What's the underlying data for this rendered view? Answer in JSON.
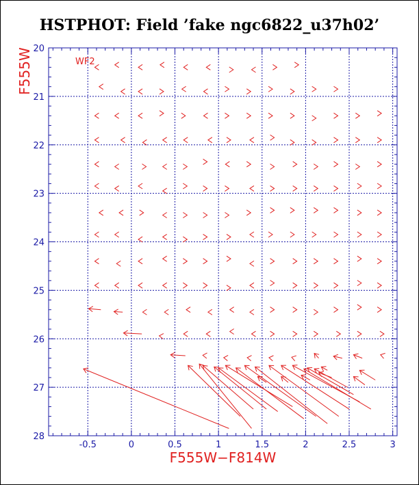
{
  "chart_data": {
    "type": "vector",
    "title": "HSTPHOT: Field ’fake ngc6822_u37h02’",
    "xlabel": "F555W−F814W",
    "ylabel": "F555W",
    "annotation": "WF2",
    "xlim": [
      -0.95,
      3.05
    ],
    "ylim": [
      28,
      20
    ],
    "x_ticks": [
      -0.5,
      0,
      0.5,
      1,
      1.5,
      2,
      2.5,
      3
    ],
    "x_tick_labels": [
      "-0.5",
      "0",
      "0.5",
      "1",
      "1.5",
      "2",
      "2.5",
      "3"
    ],
    "y_ticks": [
      20,
      21,
      22,
      23,
      24,
      25,
      26,
      27,
      28
    ],
    "y_tick_labels": [
      "20",
      "21",
      "22",
      "23",
      "24",
      "25",
      "26",
      "27",
      "28"
    ],
    "grid_x": [
      -0.5,
      0,
      0.5,
      1,
      1.5,
      2,
      2.5,
      3
    ],
    "grid_y": [
      21,
      22,
      23,
      24,
      25,
      26,
      27
    ],
    "colors": {
      "axes": "#1a1aa6",
      "vectors": "#e0201f",
      "title": "#000000"
    },
    "vectors": [
      {
        "x0": -0.4,
        "y0": 20.4,
        "x1": -0.42,
        "y1": 20.4
      },
      {
        "x0": -0.17,
        "y0": 20.35,
        "x1": -0.19,
        "y1": 20.35
      },
      {
        "x0": 0.1,
        "y0": 20.4,
        "x1": 0.08,
        "y1": 20.4
      },
      {
        "x0": 0.35,
        "y0": 20.35,
        "x1": 0.33,
        "y1": 20.35
      },
      {
        "x0": 0.62,
        "y0": 20.4,
        "x1": 0.6,
        "y1": 20.4
      },
      {
        "x0": 0.88,
        "y0": 20.4,
        "x1": 0.86,
        "y1": 20.4
      },
      {
        "x0": 1.15,
        "y0": 20.45,
        "x1": 1.17,
        "y1": 20.45
      },
      {
        "x0": 1.4,
        "y0": 20.45,
        "x1": 1.38,
        "y1": 20.45
      },
      {
        "x0": 1.65,
        "y0": 20.4,
        "x1": 1.67,
        "y1": 20.4
      },
      {
        "x0": 1.9,
        "y0": 20.35,
        "x1": 1.92,
        "y1": 20.35
      },
      {
        "x0": -0.35,
        "y0": 20.8,
        "x1": -0.37,
        "y1": 20.8
      },
      {
        "x0": -0.1,
        "y0": 20.9,
        "x1": -0.12,
        "y1": 20.9
      },
      {
        "x0": 0.1,
        "y0": 20.9,
        "x1": 0.08,
        "y1": 20.9
      },
      {
        "x0": 0.35,
        "y0": 20.9,
        "x1": 0.37,
        "y1": 20.9
      },
      {
        "x0": 0.6,
        "y0": 20.85,
        "x1": 0.58,
        "y1": 20.85
      },
      {
        "x0": 0.85,
        "y0": 20.9,
        "x1": 0.83,
        "y1": 20.9
      },
      {
        "x0": 1.1,
        "y0": 20.85,
        "x1": 1.12,
        "y1": 20.85
      },
      {
        "x0": 1.35,
        "y0": 20.9,
        "x1": 1.37,
        "y1": 20.9
      },
      {
        "x0": 1.6,
        "y0": 20.85,
        "x1": 1.62,
        "y1": 20.85
      },
      {
        "x0": 1.85,
        "y0": 20.9,
        "x1": 1.87,
        "y1": 20.9
      },
      {
        "x0": 2.1,
        "y0": 20.85,
        "x1": 2.12,
        "y1": 20.85
      },
      {
        "x0": 2.35,
        "y0": 20.85,
        "x1": 2.37,
        "y1": 20.85
      },
      {
        "x0": -0.4,
        "y0": 21.4,
        "x1": -0.42,
        "y1": 21.4
      },
      {
        "x0": -0.17,
        "y0": 21.4,
        "x1": -0.19,
        "y1": 21.4
      },
      {
        "x0": 0.1,
        "y0": 21.4,
        "x1": 0.08,
        "y1": 21.4
      },
      {
        "x0": 0.35,
        "y0": 21.35,
        "x1": 0.37,
        "y1": 21.35
      },
      {
        "x0": 0.6,
        "y0": 21.4,
        "x1": 0.62,
        "y1": 21.4
      },
      {
        "x0": 0.85,
        "y0": 21.4,
        "x1": 0.83,
        "y1": 21.4
      },
      {
        "x0": 1.1,
        "y0": 21.4,
        "x1": 1.12,
        "y1": 21.4
      },
      {
        "x0": 1.35,
        "y0": 21.4,
        "x1": 1.37,
        "y1": 21.4
      },
      {
        "x0": 1.6,
        "y0": 21.4,
        "x1": 1.62,
        "y1": 21.4
      },
      {
        "x0": 1.85,
        "y0": 21.4,
        "x1": 1.87,
        "y1": 21.4
      },
      {
        "x0": 2.1,
        "y0": 21.45,
        "x1": 2.12,
        "y1": 21.45
      },
      {
        "x0": 2.35,
        "y0": 21.4,
        "x1": 2.37,
        "y1": 21.4
      },
      {
        "x0": 2.6,
        "y0": 21.4,
        "x1": 2.62,
        "y1": 21.4
      },
      {
        "x0": 2.85,
        "y0": 21.35,
        "x1": 2.87,
        "y1": 21.35
      },
      {
        "x0": -0.4,
        "y0": 21.9,
        "x1": -0.42,
        "y1": 21.9
      },
      {
        "x0": -0.1,
        "y0": 21.9,
        "x1": -0.12,
        "y1": 21.9
      },
      {
        "x0": 0.15,
        "y0": 21.95,
        "x1": 0.13,
        "y1": 21.95
      },
      {
        "x0": 0.38,
        "y0": 21.9,
        "x1": 0.36,
        "y1": 21.9
      },
      {
        "x0": 0.62,
        "y0": 21.9,
        "x1": 0.6,
        "y1": 21.9
      },
      {
        "x0": 0.9,
        "y0": 21.9,
        "x1": 0.88,
        "y1": 21.9
      },
      {
        "x0": 1.12,
        "y0": 21.9,
        "x1": 1.14,
        "y1": 21.9
      },
      {
        "x0": 1.38,
        "y0": 21.9,
        "x1": 1.36,
        "y1": 21.9
      },
      {
        "x0": 1.62,
        "y0": 21.85,
        "x1": 1.64,
        "y1": 21.85
      },
      {
        "x0": 1.85,
        "y0": 21.95,
        "x1": 1.87,
        "y1": 21.95
      },
      {
        "x0": 2.1,
        "y0": 21.95,
        "x1": 2.12,
        "y1": 21.95
      },
      {
        "x0": 2.35,
        "y0": 21.9,
        "x1": 2.37,
        "y1": 21.9
      },
      {
        "x0": 2.6,
        "y0": 21.9,
        "x1": 2.62,
        "y1": 21.9
      },
      {
        "x0": 2.85,
        "y0": 21.9,
        "x1": 2.87,
        "y1": 21.9
      },
      {
        "x0": -0.4,
        "y0": 22.4,
        "x1": -0.42,
        "y1": 22.4
      },
      {
        "x0": -0.17,
        "y0": 22.45,
        "x1": -0.19,
        "y1": 22.45
      },
      {
        "x0": 0.15,
        "y0": 22.45,
        "x1": 0.17,
        "y1": 22.45
      },
      {
        "x0": 0.38,
        "y0": 22.45,
        "x1": 0.36,
        "y1": 22.45
      },
      {
        "x0": 0.62,
        "y0": 22.45,
        "x1": 0.64,
        "y1": 22.45
      },
      {
        "x0": 0.85,
        "y0": 22.35,
        "x1": 0.87,
        "y1": 22.35
      },
      {
        "x0": 1.1,
        "y0": 22.4,
        "x1": 1.08,
        "y1": 22.4
      },
      {
        "x0": 1.35,
        "y0": 22.4,
        "x1": 1.37,
        "y1": 22.4
      },
      {
        "x0": 1.62,
        "y0": 22.45,
        "x1": 1.64,
        "y1": 22.45
      },
      {
        "x0": 1.88,
        "y0": 22.4,
        "x1": 1.9,
        "y1": 22.4
      },
      {
        "x0": 2.12,
        "y0": 22.45,
        "x1": 2.14,
        "y1": 22.45
      },
      {
        "x0": 2.35,
        "y0": 22.4,
        "x1": 2.37,
        "y1": 22.4
      },
      {
        "x0": 2.6,
        "y0": 22.45,
        "x1": 2.62,
        "y1": 22.45
      },
      {
        "x0": 2.85,
        "y0": 22.4,
        "x1": 2.87,
        "y1": 22.4
      },
      {
        "x0": -0.4,
        "y0": 22.85,
        "x1": -0.42,
        "y1": 22.85
      },
      {
        "x0": -0.17,
        "y0": 22.9,
        "x1": -0.19,
        "y1": 22.9
      },
      {
        "x0": 0.1,
        "y0": 22.85,
        "x1": 0.08,
        "y1": 22.85
      },
      {
        "x0": 0.38,
        "y0": 22.95,
        "x1": 0.36,
        "y1": 22.95
      },
      {
        "x0": 0.62,
        "y0": 22.85,
        "x1": 0.64,
        "y1": 22.85
      },
      {
        "x0": 0.85,
        "y0": 22.9,
        "x1": 0.87,
        "y1": 22.9
      },
      {
        "x0": 1.1,
        "y0": 22.9,
        "x1": 1.12,
        "y1": 22.9
      },
      {
        "x0": 1.38,
        "y0": 22.9,
        "x1": 1.36,
        "y1": 22.9
      },
      {
        "x0": 1.62,
        "y0": 22.9,
        "x1": 1.64,
        "y1": 22.9
      },
      {
        "x0": 1.88,
        "y0": 22.9,
        "x1": 1.9,
        "y1": 22.9
      },
      {
        "x0": 2.12,
        "y0": 22.9,
        "x1": 2.14,
        "y1": 22.9
      },
      {
        "x0": 2.35,
        "y0": 22.9,
        "x1": 2.37,
        "y1": 22.9
      },
      {
        "x0": 2.62,
        "y0": 22.85,
        "x1": 2.64,
        "y1": 22.85
      },
      {
        "x0": 2.85,
        "y0": 22.85,
        "x1": 2.87,
        "y1": 22.85
      },
      {
        "x0": -0.35,
        "y0": 23.4,
        "x1": -0.37,
        "y1": 23.4
      },
      {
        "x0": -0.12,
        "y0": 23.4,
        "x1": -0.14,
        "y1": 23.4
      },
      {
        "x0": 0.12,
        "y0": 23.4,
        "x1": 0.14,
        "y1": 23.4
      },
      {
        "x0": 0.38,
        "y0": 23.45,
        "x1": 0.36,
        "y1": 23.45
      },
      {
        "x0": 0.62,
        "y0": 23.45,
        "x1": 0.64,
        "y1": 23.45
      },
      {
        "x0": 0.85,
        "y0": 23.45,
        "x1": 0.87,
        "y1": 23.45
      },
      {
        "x0": 1.1,
        "y0": 23.45,
        "x1": 1.12,
        "y1": 23.45
      },
      {
        "x0": 1.35,
        "y0": 23.4,
        "x1": 1.37,
        "y1": 23.4
      },
      {
        "x0": 1.62,
        "y0": 23.35,
        "x1": 1.64,
        "y1": 23.35
      },
      {
        "x0": 1.85,
        "y0": 23.35,
        "x1": 1.87,
        "y1": 23.35
      },
      {
        "x0": 2.12,
        "y0": 23.35,
        "x1": 2.14,
        "y1": 23.35
      },
      {
        "x0": 2.35,
        "y0": 23.35,
        "x1": 2.37,
        "y1": 23.35
      },
      {
        "x0": 2.62,
        "y0": 23.4,
        "x1": 2.64,
        "y1": 23.4
      },
      {
        "x0": 2.85,
        "y0": 23.4,
        "x1": 2.87,
        "y1": 23.4
      },
      {
        "x0": -0.4,
        "y0": 23.85,
        "x1": -0.42,
        "y1": 23.85
      },
      {
        "x0": -0.17,
        "y0": 23.85,
        "x1": -0.19,
        "y1": 23.85
      },
      {
        "x0": 0.1,
        "y0": 23.95,
        "x1": 0.08,
        "y1": 23.95
      },
      {
        "x0": 0.38,
        "y0": 23.9,
        "x1": 0.36,
        "y1": 23.9
      },
      {
        "x0": 0.62,
        "y0": 23.95,
        "x1": 0.64,
        "y1": 23.95
      },
      {
        "x0": 0.85,
        "y0": 23.9,
        "x1": 0.87,
        "y1": 23.9
      },
      {
        "x0": 1.12,
        "y0": 23.9,
        "x1": 1.14,
        "y1": 23.9
      },
      {
        "x0": 1.38,
        "y0": 23.85,
        "x1": 1.36,
        "y1": 23.85
      },
      {
        "x0": 1.6,
        "y0": 23.85,
        "x1": 1.62,
        "y1": 23.85
      },
      {
        "x0": 1.85,
        "y0": 23.85,
        "x1": 1.87,
        "y1": 23.85
      },
      {
        "x0": 2.1,
        "y0": 23.85,
        "x1": 2.12,
        "y1": 23.85
      },
      {
        "x0": 2.35,
        "y0": 23.85,
        "x1": 2.37,
        "y1": 23.85
      },
      {
        "x0": 2.62,
        "y0": 23.85,
        "x1": 2.64,
        "y1": 23.85
      },
      {
        "x0": 2.85,
        "y0": 23.85,
        "x1": 2.87,
        "y1": 23.85
      },
      {
        "x0": -0.4,
        "y0": 24.4,
        "x1": -0.42,
        "y1": 24.4
      },
      {
        "x0": -0.15,
        "y0": 24.45,
        "x1": -0.17,
        "y1": 24.45
      },
      {
        "x0": 0.1,
        "y0": 24.4,
        "x1": 0.08,
        "y1": 24.4
      },
      {
        "x0": 0.38,
        "y0": 24.35,
        "x1": 0.36,
        "y1": 24.35
      },
      {
        "x0": 0.62,
        "y0": 24.4,
        "x1": 0.64,
        "y1": 24.4
      },
      {
        "x0": 0.85,
        "y0": 24.4,
        "x1": 0.87,
        "y1": 24.4
      },
      {
        "x0": 1.12,
        "y0": 24.35,
        "x1": 1.14,
        "y1": 24.35
      },
      {
        "x0": 1.38,
        "y0": 24.45,
        "x1": 1.36,
        "y1": 24.45
      },
      {
        "x0": 1.62,
        "y0": 24.4,
        "x1": 1.64,
        "y1": 24.4
      },
      {
        "x0": 1.88,
        "y0": 24.4,
        "x1": 1.9,
        "y1": 24.4
      },
      {
        "x0": 2.12,
        "y0": 24.4,
        "x1": 2.14,
        "y1": 24.4
      },
      {
        "x0": 2.35,
        "y0": 24.4,
        "x1": 2.37,
        "y1": 24.4
      },
      {
        "x0": 2.62,
        "y0": 24.35,
        "x1": 2.64,
        "y1": 24.35
      },
      {
        "x0": 2.85,
        "y0": 24.4,
        "x1": 2.87,
        "y1": 24.4
      },
      {
        "x0": -0.4,
        "y0": 24.9,
        "x1": -0.42,
        "y1": 24.9
      },
      {
        "x0": -0.17,
        "y0": 24.9,
        "x1": -0.19,
        "y1": 24.9
      },
      {
        "x0": 0.1,
        "y0": 24.9,
        "x1": 0.08,
        "y1": 24.9
      },
      {
        "x0": 0.38,
        "y0": 24.9,
        "x1": 0.36,
        "y1": 24.9
      },
      {
        "x0": 0.62,
        "y0": 24.9,
        "x1": 0.64,
        "y1": 24.9
      },
      {
        "x0": 0.85,
        "y0": 24.9,
        "x1": 0.87,
        "y1": 24.9
      },
      {
        "x0": 1.12,
        "y0": 24.95,
        "x1": 1.14,
        "y1": 24.95
      },
      {
        "x0": 1.38,
        "y0": 24.9,
        "x1": 1.36,
        "y1": 24.9
      },
      {
        "x0": 1.62,
        "y0": 24.85,
        "x1": 1.64,
        "y1": 24.85
      },
      {
        "x0": 1.88,
        "y0": 24.9,
        "x1": 1.9,
        "y1": 24.9
      },
      {
        "x0": 2.12,
        "y0": 24.9,
        "x1": 2.14,
        "y1": 24.9
      },
      {
        "x0": 2.35,
        "y0": 24.9,
        "x1": 2.37,
        "y1": 24.9
      },
      {
        "x0": 2.62,
        "y0": 24.85,
        "x1": 2.64,
        "y1": 24.85
      },
      {
        "x0": 2.85,
        "y0": 24.9,
        "x1": 2.87,
        "y1": 24.9
      },
      {
        "x0": -0.35,
        "y0": 25.4,
        "x1": -0.49,
        "y1": 25.38
      },
      {
        "x0": -0.1,
        "y0": 25.45,
        "x1": -0.2,
        "y1": 25.44
      },
      {
        "x0": 0.15,
        "y0": 25.45,
        "x1": 0.13,
        "y1": 25.45
      },
      {
        "x0": 0.4,
        "y0": 25.45,
        "x1": 0.38,
        "y1": 25.45
      },
      {
        "x0": 0.65,
        "y0": 25.4,
        "x1": 0.63,
        "y1": 25.4
      },
      {
        "x0": 0.9,
        "y0": 25.45,
        "x1": 0.88,
        "y1": 25.45
      },
      {
        "x0": 1.15,
        "y0": 25.4,
        "x1": 1.13,
        "y1": 25.4
      },
      {
        "x0": 1.38,
        "y0": 25.45,
        "x1": 1.36,
        "y1": 25.45
      },
      {
        "x0": 1.62,
        "y0": 25.4,
        "x1": 1.64,
        "y1": 25.4
      },
      {
        "x0": 1.88,
        "y0": 25.4,
        "x1": 1.9,
        "y1": 25.4
      },
      {
        "x0": 2.12,
        "y0": 25.45,
        "x1": 2.14,
        "y1": 25.45
      },
      {
        "x0": 2.35,
        "y0": 25.4,
        "x1": 2.37,
        "y1": 25.4
      },
      {
        "x0": 2.62,
        "y0": 25.35,
        "x1": 2.64,
        "y1": 25.35
      },
      {
        "x0": 2.85,
        "y0": 25.4,
        "x1": 2.87,
        "y1": 25.4
      },
      {
        "x0": 0.12,
        "y0": 25.9,
        "x1": -0.09,
        "y1": 25.88
      },
      {
        "x0": 0.38,
        "y0": 25.95,
        "x1": 0.32,
        "y1": 25.94
      },
      {
        "x0": 0.62,
        "y0": 25.9,
        "x1": 0.6,
        "y1": 25.9
      },
      {
        "x0": 0.88,
        "y0": 25.9,
        "x1": 0.86,
        "y1": 25.9
      },
      {
        "x0": 1.15,
        "y0": 25.85,
        "x1": 1.13,
        "y1": 25.85
      },
      {
        "x0": 1.4,
        "y0": 25.9,
        "x1": 1.38,
        "y1": 25.9
      },
      {
        "x0": 1.62,
        "y0": 25.9,
        "x1": 1.64,
        "y1": 25.9
      },
      {
        "x0": 1.88,
        "y0": 25.9,
        "x1": 1.9,
        "y1": 25.9
      },
      {
        "x0": 2.12,
        "y0": 25.9,
        "x1": 2.14,
        "y1": 25.9
      },
      {
        "x0": 2.38,
        "y0": 25.9,
        "x1": 2.4,
        "y1": 25.9
      },
      {
        "x0": 2.62,
        "y0": 25.9,
        "x1": 2.64,
        "y1": 25.9
      },
      {
        "x0": 2.88,
        "y0": 25.9,
        "x1": 2.9,
        "y1": 25.9
      },
      {
        "x0": 0.62,
        "y0": 26.35,
        "x1": 0.45,
        "y1": 26.33
      },
      {
        "x0": 0.88,
        "y0": 26.35,
        "x1": 0.82,
        "y1": 26.34
      },
      {
        "x0": 1.12,
        "y0": 26.4,
        "x1": 1.06,
        "y1": 26.39
      },
      {
        "x0": 1.38,
        "y0": 26.4,
        "x1": 1.33,
        "y1": 26.39
      },
      {
        "x0": 1.62,
        "y0": 26.4,
        "x1": 1.58,
        "y1": 26.39
      },
      {
        "x0": 1.88,
        "y0": 26.4,
        "x1": 1.84,
        "y1": 26.38
      },
      {
        "x0": 2.15,
        "y0": 26.4,
        "x1": 2.1,
        "y1": 26.3
      },
      {
        "x0": 2.42,
        "y0": 26.4,
        "x1": 2.32,
        "y1": 26.36
      },
      {
        "x0": 2.65,
        "y0": 26.4,
        "x1": 2.55,
        "y1": 26.33
      },
      {
        "x0": 2.9,
        "y0": 26.35,
        "x1": 2.86,
        "y1": 26.33
      },
      {
        "x0": 1.12,
        "y0": 27.85,
        "x1": -0.55,
        "y1": 26.62
      },
      {
        "x0": 1.38,
        "y0": 27.85,
        "x1": 0.78,
        "y1": 26.52
      },
      {
        "x0": 1.25,
        "y0": 27.6,
        "x1": 0.65,
        "y1": 26.55
      },
      {
        "x0": 1.4,
        "y0": 27.45,
        "x1": 0.82,
        "y1": 26.55
      },
      {
        "x0": 1.55,
        "y0": 27.45,
        "x1": 0.95,
        "y1": 26.58
      },
      {
        "x0": 1.68,
        "y0": 27.5,
        "x1": 1.0,
        "y1": 26.6
      },
      {
        "x0": 1.85,
        "y0": 27.4,
        "x1": 1.08,
        "y1": 26.55
      },
      {
        "x0": 1.98,
        "y0": 27.65,
        "x1": 1.2,
        "y1": 26.6
      },
      {
        "x0": 2.12,
        "y0": 27.6,
        "x1": 1.3,
        "y1": 26.55
      },
      {
        "x0": 2.25,
        "y0": 27.75,
        "x1": 1.42,
        "y1": 26.58
      },
      {
        "x0": 2.38,
        "y0": 27.6,
        "x1": 1.58,
        "y1": 26.55
      },
      {
        "x0": 2.5,
        "y0": 27.45,
        "x1": 1.72,
        "y1": 26.55
      },
      {
        "x0": 2.62,
        "y0": 27.3,
        "x1": 1.85,
        "y1": 26.55
      },
      {
        "x0": 2.75,
        "y0": 27.45,
        "x1": 1.98,
        "y1": 26.62
      },
      {
        "x0": 2.55,
        "y0": 27.15,
        "x1": 2.02,
        "y1": 26.6
      },
      {
        "x0": 2.48,
        "y0": 27.0,
        "x1": 2.1,
        "y1": 26.62
      },
      {
        "x0": 2.3,
        "y0": 26.8,
        "x1": 2.15,
        "y1": 26.7
      },
      {
        "x0": 2.05,
        "y0": 26.85,
        "x1": 1.95,
        "y1": 26.75
      },
      {
        "x0": 1.8,
        "y0": 26.9,
        "x1": 1.72,
        "y1": 26.78
      },
      {
        "x0": 1.55,
        "y0": 26.9,
        "x1": 1.45,
        "y1": 26.78
      },
      {
        "x0": 2.68,
        "y0": 26.95,
        "x1": 2.55,
        "y1": 26.78
      },
      {
        "x0": 2.8,
        "y0": 26.85,
        "x1": 2.62,
        "y1": 26.65
      },
      {
        "x0": 2.25,
        "y0": 26.65,
        "x1": 2.18,
        "y1": 26.58
      }
    ]
  }
}
